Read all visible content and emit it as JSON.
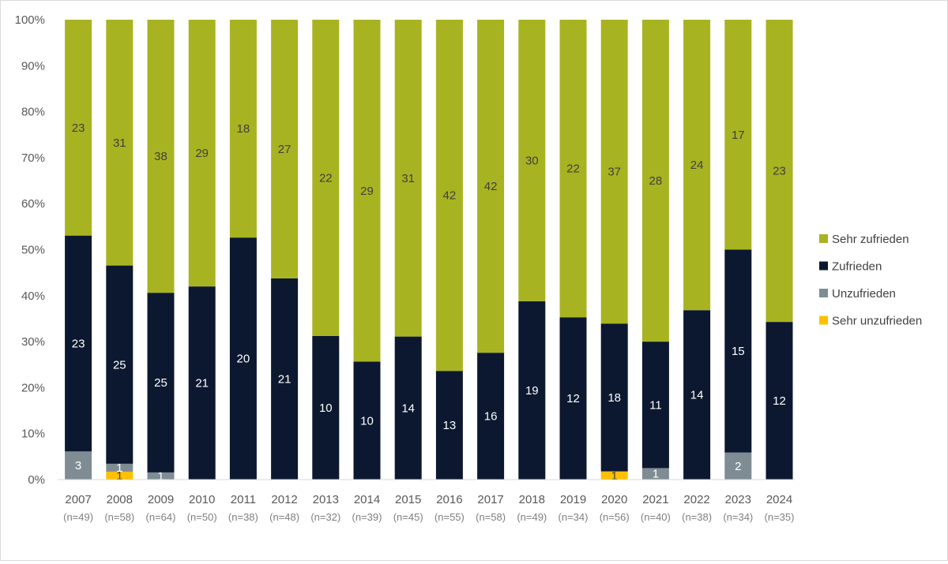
{
  "chart_data": {
    "type": "bar",
    "stacked": "percent",
    "categories": [
      "2007",
      "2008",
      "2009",
      "2010",
      "2011",
      "2012",
      "2013",
      "2014",
      "2015",
      "2016",
      "2017",
      "2018",
      "2019",
      "2020",
      "2021",
      "2022",
      "2023",
      "2024"
    ],
    "sample_sizes": [
      "(n=49)",
      "(n=58)",
      "(n=64)",
      "(n=50)",
      "(n=38)",
      "(n=48)",
      "(n=32)",
      "(n=39)",
      "(n=45)",
      "(n=55)",
      "(n=58)",
      "(n=49)",
      "(n=34)",
      "(n=56)",
      "(n=40)",
      "(n=38)",
      "(n=34)",
      "(n=35)"
    ],
    "series": [
      {
        "name": "Sehr unzufrieden",
        "color": "#FFC000",
        "values": [
          0,
          1,
          0,
          0,
          0,
          0,
          0,
          0,
          0,
          0,
          0,
          0,
          0,
          1,
          0,
          0,
          0,
          0
        ]
      },
      {
        "name": "Unzufrieden",
        "color": "#7F8C94",
        "values": [
          3,
          1,
          1,
          0,
          0,
          0,
          0,
          0,
          0,
          0,
          0,
          0,
          0,
          0,
          1,
          0,
          2,
          0
        ]
      },
      {
        "name": "Zufrieden",
        "color": "#0C1830",
        "values": [
          23,
          25,
          25,
          21,
          20,
          21,
          10,
          10,
          14,
          13,
          16,
          19,
          12,
          18,
          11,
          14,
          15,
          12
        ]
      },
      {
        "name": "Sehr zufrieden",
        "color": "#A8B321",
        "values": [
          23,
          31,
          38,
          29,
          18,
          27,
          22,
          29,
          31,
          42,
          42,
          30,
          22,
          37,
          28,
          24,
          17,
          23
        ]
      }
    ],
    "legend_order": [
      "Sehr zufrieden",
      "Zufrieden",
      "Unzufrieden",
      "Sehr unzufrieden"
    ],
    "y_ticks": [
      "0%",
      "10%",
      "20%",
      "30%",
      "40%",
      "50%",
      "60%",
      "70%",
      "80%",
      "90%",
      "100%"
    ],
    "ylim": [
      0,
      100
    ],
    "grid": false,
    "legend_position": "right",
    "label_colors": {
      "Sehr unzufrieden": "#404040",
      "Unzufrieden": "#ffffff",
      "Zufrieden": "#ffffff",
      "Sehr zufrieden": "#404040"
    }
  }
}
